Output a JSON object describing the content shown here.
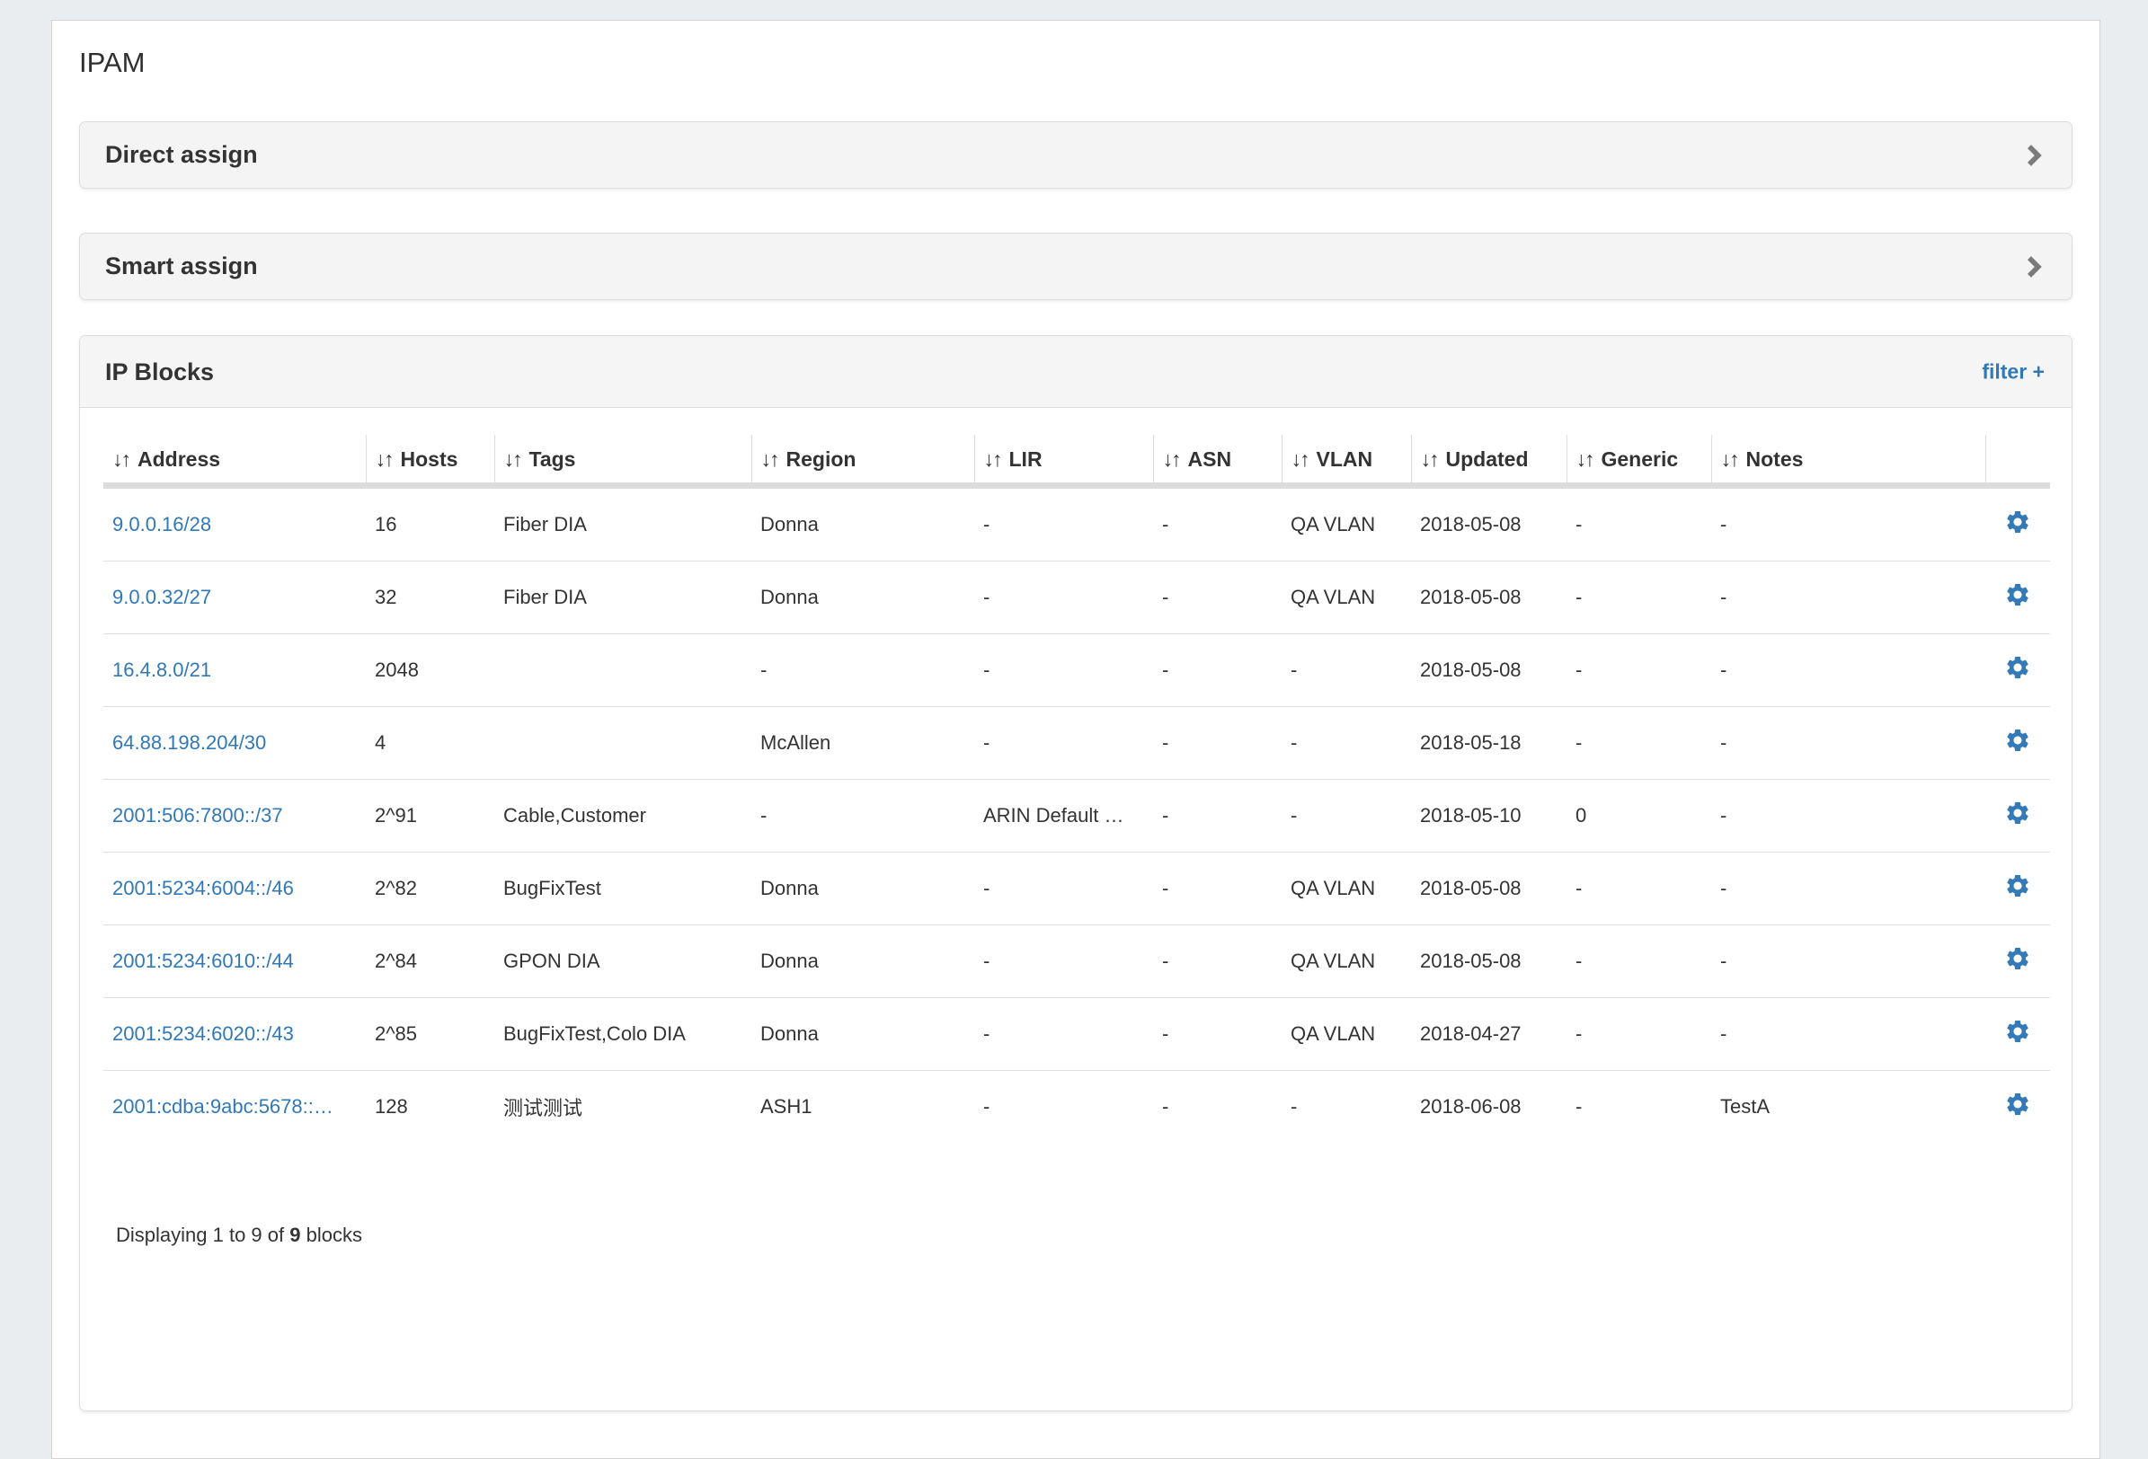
{
  "page_title": "IPAM",
  "panels": {
    "direct_assign": {
      "label": "Direct assign"
    },
    "smart_assign": {
      "label": "Smart assign"
    }
  },
  "ip_blocks": {
    "title": "IP Blocks",
    "filter_label": "filter +",
    "columns": [
      {
        "key": "address",
        "label": "Address"
      },
      {
        "key": "hosts",
        "label": "Hosts"
      },
      {
        "key": "tags",
        "label": "Tags"
      },
      {
        "key": "region",
        "label": "Region"
      },
      {
        "key": "lir",
        "label": "LIR"
      },
      {
        "key": "asn",
        "label": "ASN"
      },
      {
        "key": "vlan",
        "label": "VLAN"
      },
      {
        "key": "updated",
        "label": "Updated"
      },
      {
        "key": "generic",
        "label": "Generic"
      },
      {
        "key": "notes",
        "label": "Notes"
      }
    ],
    "rows": [
      {
        "address": "9.0.0.16/28",
        "hosts": "16",
        "tags": "Fiber DIA",
        "region": "Donna",
        "lir": "-",
        "asn": "-",
        "vlan": "QA VLAN",
        "updated": "2018-05-08",
        "generic": "-",
        "notes": "-"
      },
      {
        "address": "9.0.0.32/27",
        "hosts": "32",
        "tags": "Fiber DIA",
        "region": "Donna",
        "lir": "-",
        "asn": "-",
        "vlan": "QA VLAN",
        "updated": "2018-05-08",
        "generic": "-",
        "notes": "-"
      },
      {
        "address": "16.4.8.0/21",
        "hosts": "2048",
        "tags": "",
        "region": "-",
        "lir": "-",
        "asn": "-",
        "vlan": "-",
        "updated": "2018-05-08",
        "generic": "-",
        "notes": "-"
      },
      {
        "address": "64.88.198.204/30",
        "hosts": "4",
        "tags": "",
        "region": "McAllen",
        "lir": "-",
        "asn": "-",
        "vlan": "-",
        "updated": "2018-05-18",
        "generic": "-",
        "notes": "-"
      },
      {
        "address": "2001:506:7800::/37",
        "hosts": "2^91",
        "tags": "Cable,Customer",
        "region": "-",
        "lir": "ARIN Default …",
        "asn": "-",
        "vlan": "-",
        "updated": "2018-05-10",
        "generic": "0",
        "notes": "-"
      },
      {
        "address": "2001:5234:6004::/46",
        "hosts": "2^82",
        "tags": "BugFixTest",
        "region": "Donna",
        "lir": "-",
        "asn": "-",
        "vlan": "QA VLAN",
        "updated": "2018-05-08",
        "generic": "-",
        "notes": "-"
      },
      {
        "address": "2001:5234:6010::/44",
        "hosts": "2^84",
        "tags": "GPON DIA",
        "region": "Donna",
        "lir": "-",
        "asn": "-",
        "vlan": "QA VLAN",
        "updated": "2018-05-08",
        "generic": "-",
        "notes": "-"
      },
      {
        "address": "2001:5234:6020::/43",
        "hosts": "2^85",
        "tags": "BugFixTest,Colo DIA",
        "region": "Donna",
        "lir": "-",
        "asn": "-",
        "vlan": "QA VLAN",
        "updated": "2018-04-27",
        "generic": "-",
        "notes": "-"
      },
      {
        "address": "2001:cdba:9abc:5678::…",
        "hosts": "128",
        "tags": "测试测试",
        "region": "ASH1",
        "lir": "-",
        "asn": "-",
        "vlan": "-",
        "updated": "2018-06-08",
        "generic": "-",
        "notes": "TestA"
      }
    ],
    "footer": {
      "prefix": "Displaying 1 to 9 of ",
      "total": "9",
      "suffix": " blocks"
    }
  },
  "icons": {
    "sort": "↓↑",
    "row_action": "gear-icon",
    "panel_expand": "chevron-right-icon"
  },
  "colors": {
    "link_blue": "#3178b7",
    "gear_blue": "#337ab7",
    "page_background": "#e9edf0",
    "panel_background": "#f4f4f4",
    "border": "#dddddd",
    "text": "#333333"
  }
}
